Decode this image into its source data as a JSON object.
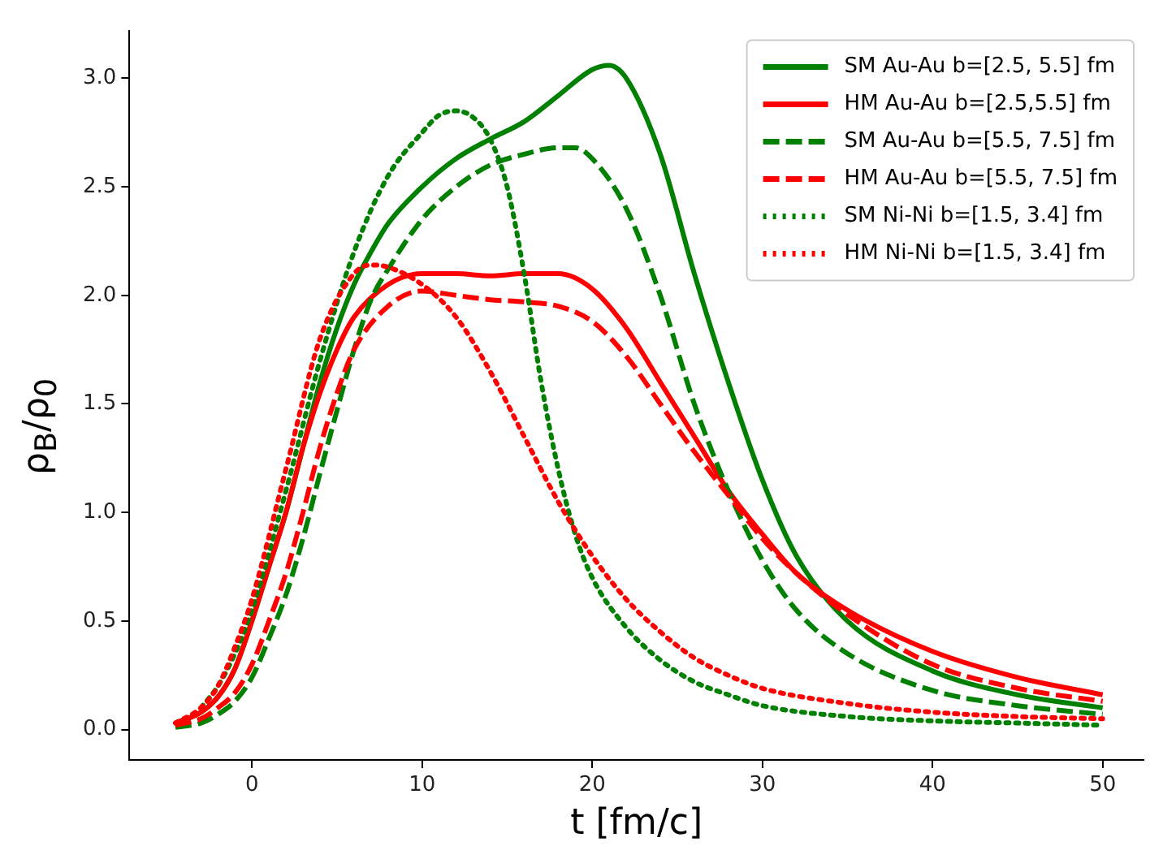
{
  "chart_data": {
    "type": "line",
    "xlabel": "t [fm/c]",
    "ylabel": "ρ$_{B}$/ρ$_{0}$",
    "xlim": [
      -7.2,
      52.4
    ],
    "ylim": [
      -0.14,
      3.22
    ],
    "xticks": [
      0,
      10,
      20,
      30,
      40,
      50
    ],
    "yticks": [
      {
        "value": 0,
        "label": "0.0"
      },
      0.5,
      {
        "value": 1,
        "label": "1.0"
      },
      1.5,
      {
        "value": 2,
        "label": "2.0"
      },
      2.5,
      {
        "value": 3,
        "label": "3.0"
      }
    ],
    "grid": false,
    "legend": "top right",
    "marker": "none",
    "series": [
      {
        "name": "SM Au-Au b=[2.5, 5.5] fm",
        "color": "#008000",
        "line_style": "solid",
        "x": [
          -4.5,
          -3,
          -2,
          -1,
          0,
          1,
          2,
          3,
          4,
          5,
          6,
          7,
          8,
          10,
          12,
          14,
          16,
          18,
          20,
          21,
          22,
          24,
          26,
          28,
          30,
          32,
          35,
          40,
          45,
          50
        ],
        "values": [
          0.03,
          0.08,
          0.15,
          0.28,
          0.5,
          0.75,
          1.0,
          1.3,
          1.6,
          1.85,
          2.05,
          2.2,
          2.33,
          2.5,
          2.63,
          2.72,
          2.8,
          2.92,
          3.04,
          3.06,
          3.0,
          2.65,
          2.1,
          1.6,
          1.15,
          0.8,
          0.5,
          0.27,
          0.16,
          0.1
        ]
      },
      {
        "name": "HM Au-Au b=[2.5,5.5] fm",
        "color": "#ff0000",
        "line_style": "solid",
        "x": [
          -4.5,
          -3,
          -2,
          -1,
          0,
          1,
          2,
          3,
          4,
          5,
          6,
          8,
          10,
          12,
          14,
          16,
          18,
          20,
          22,
          24,
          26,
          28,
          30,
          32,
          35,
          40,
          45,
          50
        ],
        "values": [
          0.03,
          0.08,
          0.15,
          0.28,
          0.5,
          0.75,
          1.0,
          1.3,
          1.55,
          1.75,
          1.9,
          2.05,
          2.1,
          2.1,
          2.09,
          2.1,
          2.1,
          2.03,
          1.85,
          1.6,
          1.35,
          1.1,
          0.9,
          0.72,
          0.55,
          0.36,
          0.24,
          0.16
        ]
      },
      {
        "name": "SM Au-Au b=[5.5, 7.5] fm",
        "color": "#008000",
        "line_style": "dashed",
        "x": [
          -4.5,
          -3,
          -2,
          -1,
          0,
          1,
          2,
          3,
          4,
          5,
          6,
          7,
          8,
          10,
          12,
          14,
          16,
          18,
          19,
          20,
          22,
          24,
          26,
          28,
          30,
          32,
          35,
          40,
          45,
          50
        ],
        "values": [
          0.01,
          0.03,
          0.07,
          0.13,
          0.24,
          0.42,
          0.62,
          0.88,
          1.18,
          1.47,
          1.75,
          1.98,
          2.12,
          2.35,
          2.5,
          2.6,
          2.65,
          2.68,
          2.68,
          2.63,
          2.4,
          2.0,
          1.5,
          1.1,
          0.78,
          0.55,
          0.35,
          0.18,
          0.11,
          0.07
        ]
      },
      {
        "name": "HM Au-Au b=[5.5, 7.5] fm",
        "color": "#ff0000",
        "line_style": "dashed",
        "x": [
          -4.5,
          -3,
          -2,
          -1,
          0,
          1,
          2,
          3,
          4,
          5,
          6,
          8,
          10,
          12,
          14,
          16,
          18,
          20,
          22,
          24,
          26,
          28,
          30,
          32,
          35,
          40,
          45,
          50
        ],
        "values": [
          0.02,
          0.05,
          0.1,
          0.17,
          0.3,
          0.5,
          0.72,
          1.0,
          1.3,
          1.55,
          1.75,
          1.95,
          2.02,
          2.0,
          1.98,
          1.97,
          1.95,
          1.88,
          1.72,
          1.5,
          1.28,
          1.08,
          0.88,
          0.72,
          0.53,
          0.3,
          0.19,
          0.13
        ]
      },
      {
        "name": "SM Ni-Ni b=[1.5, 3.4] fm",
        "color": "#008000",
        "line_style": "dotted",
        "x": [
          -3,
          -2,
          -1,
          0,
          2,
          4,
          6,
          8,
          10,
          11,
          12,
          13,
          14,
          15,
          16,
          17,
          18,
          19,
          20,
          22,
          24,
          26,
          28,
          30,
          35,
          40,
          45,
          50
        ],
        "values": [
          0.1,
          0.2,
          0.35,
          0.55,
          1.1,
          1.7,
          2.2,
          2.55,
          2.75,
          2.83,
          2.85,
          2.82,
          2.72,
          2.5,
          2.1,
          1.6,
          1.2,
          0.9,
          0.7,
          0.47,
          0.32,
          0.22,
          0.16,
          0.11,
          0.06,
          0.04,
          0.03,
          0.02
        ]
      },
      {
        "name": "HM Ni-Ni b=[1.5, 3.4] fm",
        "color": "#ff0000",
        "line_style": "dotted",
        "x": [
          -4.5,
          -3,
          -2,
          -1,
          0,
          2,
          4,
          6,
          7,
          8,
          10,
          12,
          14,
          16,
          18,
          20,
          22,
          24,
          26,
          28,
          30,
          35,
          40,
          45,
          50
        ],
        "values": [
          0.03,
          0.1,
          0.2,
          0.38,
          0.6,
          1.2,
          1.8,
          2.1,
          2.14,
          2.13,
          2.05,
          1.9,
          1.65,
          1.35,
          1.05,
          0.8,
          0.6,
          0.45,
          0.33,
          0.25,
          0.19,
          0.12,
          0.08,
          0.06,
          0.05
        ]
      }
    ]
  }
}
